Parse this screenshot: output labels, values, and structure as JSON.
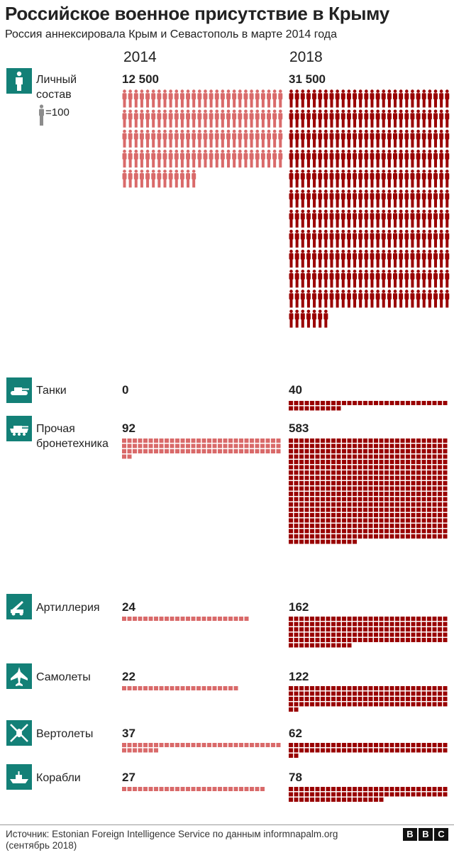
{
  "title": "Российское военное присутствие в Крыму",
  "subtitle": "Россия аннексировала Крым и Севастополь в марте 2014 года",
  "legend": {
    "unit_label": "=100"
  },
  "source": "Источник: Estonian Foreign Intelligence Service по данным informnapalm.org (сентябрь 2018)",
  "logo": [
    "B",
    "B",
    "C"
  ],
  "colors": {
    "y2014": "#d96a6a",
    "y2018": "#990000",
    "icon_bg": "#138077"
  },
  "chart_data": {
    "type": "table",
    "title": "Российское военное присутствие в Крыму",
    "subtitle": "Россия аннексировала Крым и Севастополь в марте 2014 года",
    "years": [
      "2014",
      "2018"
    ],
    "categories": [
      {
        "label": "Личный состав",
        "icon": "soldier-icon",
        "unit": 100,
        "v2014": 12500,
        "v2018": 31500,
        "d2014": "12 500",
        "d2018": "31 500"
      },
      {
        "label": "Танки",
        "icon": "tank-icon",
        "unit": 1,
        "v2014": 0,
        "v2018": 40,
        "d2014": "0",
        "d2018": "40"
      },
      {
        "label": "Прочая бронетехника",
        "icon": "armored-vehicle-icon",
        "unit": 1,
        "v2014": 92,
        "v2018": 583,
        "d2014": "92",
        "d2018": "583"
      },
      {
        "label": "Артиллерия",
        "icon": "artillery-icon",
        "unit": 1,
        "v2014": 24,
        "v2018": 162,
        "d2014": "24",
        "d2018": "162"
      },
      {
        "label": "Самолеты",
        "icon": "plane-icon",
        "unit": 1,
        "v2014": 22,
        "v2018": 122,
        "d2014": "22",
        "d2018": "122"
      },
      {
        "label": "Вертолеты",
        "icon": "helicopter-icon",
        "unit": 1,
        "v2014": 37,
        "v2018": 62,
        "d2014": "37",
        "d2018": "62"
      },
      {
        "label": "Корабли",
        "icon": "ship-icon",
        "unit": 1,
        "v2014": 27,
        "v2018": 78,
        "d2014": "27",
        "d2018": "78"
      }
    ]
  }
}
